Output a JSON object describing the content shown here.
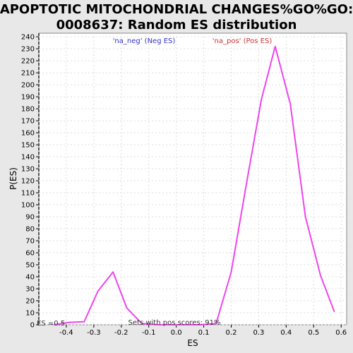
{
  "chart_data": {
    "type": "line",
    "title_line1": "APOPTOTIC MITOCHONDRIAL CHANGES%GO%GO:",
    "title_line2": "0008637: Random ES distribution",
    "xlabel": "ES",
    "ylabel": "P(ES)",
    "xlim": [
      -0.5,
      0.62
    ],
    "ylim": [
      0,
      243
    ],
    "x_ticks": [
      -0.4,
      -0.3,
      -0.2,
      -0.1,
      0.0,
      0.1,
      0.2,
      0.3,
      0.4,
      0.5,
      0.6
    ],
    "x_tick_labels": [
      "-0.4",
      "-0.3",
      "-0.2",
      "-0.1",
      "0.0",
      "0.1",
      "0.2",
      "0.3",
      "0.4",
      "0.5",
      "0.6"
    ],
    "y_ticks": [
      0,
      10,
      20,
      30,
      40,
      50,
      60,
      70,
      80,
      90,
      100,
      110,
      120,
      130,
      140,
      150,
      160,
      170,
      180,
      190,
      200,
      210,
      220,
      230,
      240
    ],
    "grid": true,
    "legend": [
      {
        "label": "'na_neg' (Neg ES)",
        "color": "#3333cc"
      },
      {
        "label": "'na_pos' (Pos ES)",
        "color": "#cc3333"
      }
    ],
    "series": [
      {
        "color": "#ee44ee",
        "x": [
          -0.445,
          -0.39,
          -0.335,
          -0.285,
          -0.23,
          -0.18,
          -0.125,
          -0.07,
          -0.02,
          0.035,
          0.09,
          0.145,
          0.2,
          0.255,
          0.31,
          0.36,
          0.415,
          0.47,
          0.525,
          0.575
        ],
        "y": [
          0,
          2,
          2.5,
          28,
          44,
          14,
          1,
          0,
          0,
          0,
          0,
          1,
          44,
          117,
          188,
          232,
          184,
          90,
          41,
          11
        ]
      }
    ],
    "annotations": [
      {
        "text": "ES =0.5"
      },
      {
        "text": "Sets with pos scores: 91%"
      }
    ]
  }
}
